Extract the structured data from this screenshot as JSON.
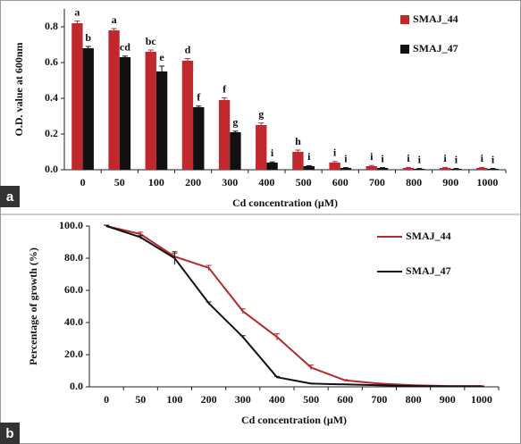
{
  "chart_data": [
    {
      "type": "bar",
      "panel_label": "a",
      "y_label": "O.D. value at 600nm",
      "x_label": "Cd concentration (μM)",
      "categories": [
        "0",
        "50",
        "100",
        "200",
        "300",
        "400",
        "500",
        "600",
        "700",
        "800",
        "900",
        "1000"
      ],
      "series": [
        {
          "name": "SMAJ_44",
          "color": "#c0282d",
          "values": [
            0.82,
            0.78,
            0.66,
            0.61,
            0.39,
            0.25,
            0.1,
            0.04,
            0.02,
            0.01,
            0.01,
            0.01
          ],
          "errors": [
            0.012,
            0.01,
            0.01,
            0.012,
            0.012,
            0.012,
            0.01,
            0.006,
            0.004,
            0.003,
            0.003,
            0.003
          ],
          "letters": [
            "a",
            "a",
            "bc",
            "d",
            "f",
            "g",
            "h",
            "i",
            "i",
            "i",
            "i",
            "i"
          ]
        },
        {
          "name": "SMAJ_47",
          "color": "#111111",
          "values": [
            0.68,
            0.63,
            0.55,
            0.35,
            0.21,
            0.04,
            0.02,
            0.01,
            0.01,
            0.005,
            0.005,
            0.005
          ],
          "errors": [
            0.01,
            0.006,
            0.03,
            0.006,
            0.006,
            0.004,
            0.003,
            0.002,
            0.002,
            0.002,
            0.002,
            0.002
          ],
          "letters": [
            "b",
            "cd",
            "e",
            "f",
            "g",
            "i",
            "i",
            "i",
            "i",
            "i",
            "i",
            "i"
          ]
        }
      ],
      "ylim": [
        0,
        0.9
      ],
      "yticks": [
        {
          "value": 0,
          "label": "0.0"
        },
        0.2,
        0.4,
        0.6,
        0.8
      ],
      "legend": "upper right"
    },
    {
      "type": "line",
      "panel_label": "b",
      "y_label": "Percentage of growth (%)",
      "x_label": "Cd concentration (μM)",
      "categories": [
        "0",
        "50",
        "100",
        "200",
        "300",
        "400",
        "500",
        "600",
        "700",
        "800",
        "900",
        "1000"
      ],
      "series": [
        {
          "name": "SMAJ_44",
          "color": "#b5282c",
          "values": [
            100,
            95,
            81,
            74,
            47,
            31,
            12,
            4,
            2,
            1,
            0.5,
            0.5
          ],
          "errors": [
            0.5,
            1.2,
            2,
            1.5,
            1.5,
            2,
            1.5,
            0.5,
            0.3,
            0.2,
            0.1,
            0.1
          ]
        },
        {
          "name": "SMAJ_47",
          "color": "#111111",
          "values": [
            100,
            93,
            80,
            52,
            31,
            6,
            2,
            1.5,
            1,
            0.5,
            0.3,
            0.3
          ],
          "errors": [
            0.5,
            1,
            4,
            0.8,
            0.8,
            0.5,
            0.3,
            0.2,
            0.2,
            0.1,
            0.1,
            0.1
          ]
        }
      ],
      "ylim": [
        0,
        100
      ],
      "yticks": [
        {
          "value": 0,
          "label": "0.0"
        },
        {
          "value": 20,
          "label": "20.0"
        },
        {
          "value": 40,
          "label": "40.0"
        },
        {
          "value": 60,
          "label": "60.0"
        },
        {
          "value": 80,
          "label": "80.0"
        },
        {
          "value": 100,
          "label": "100.0"
        }
      ],
      "legend": "upper right"
    }
  ]
}
